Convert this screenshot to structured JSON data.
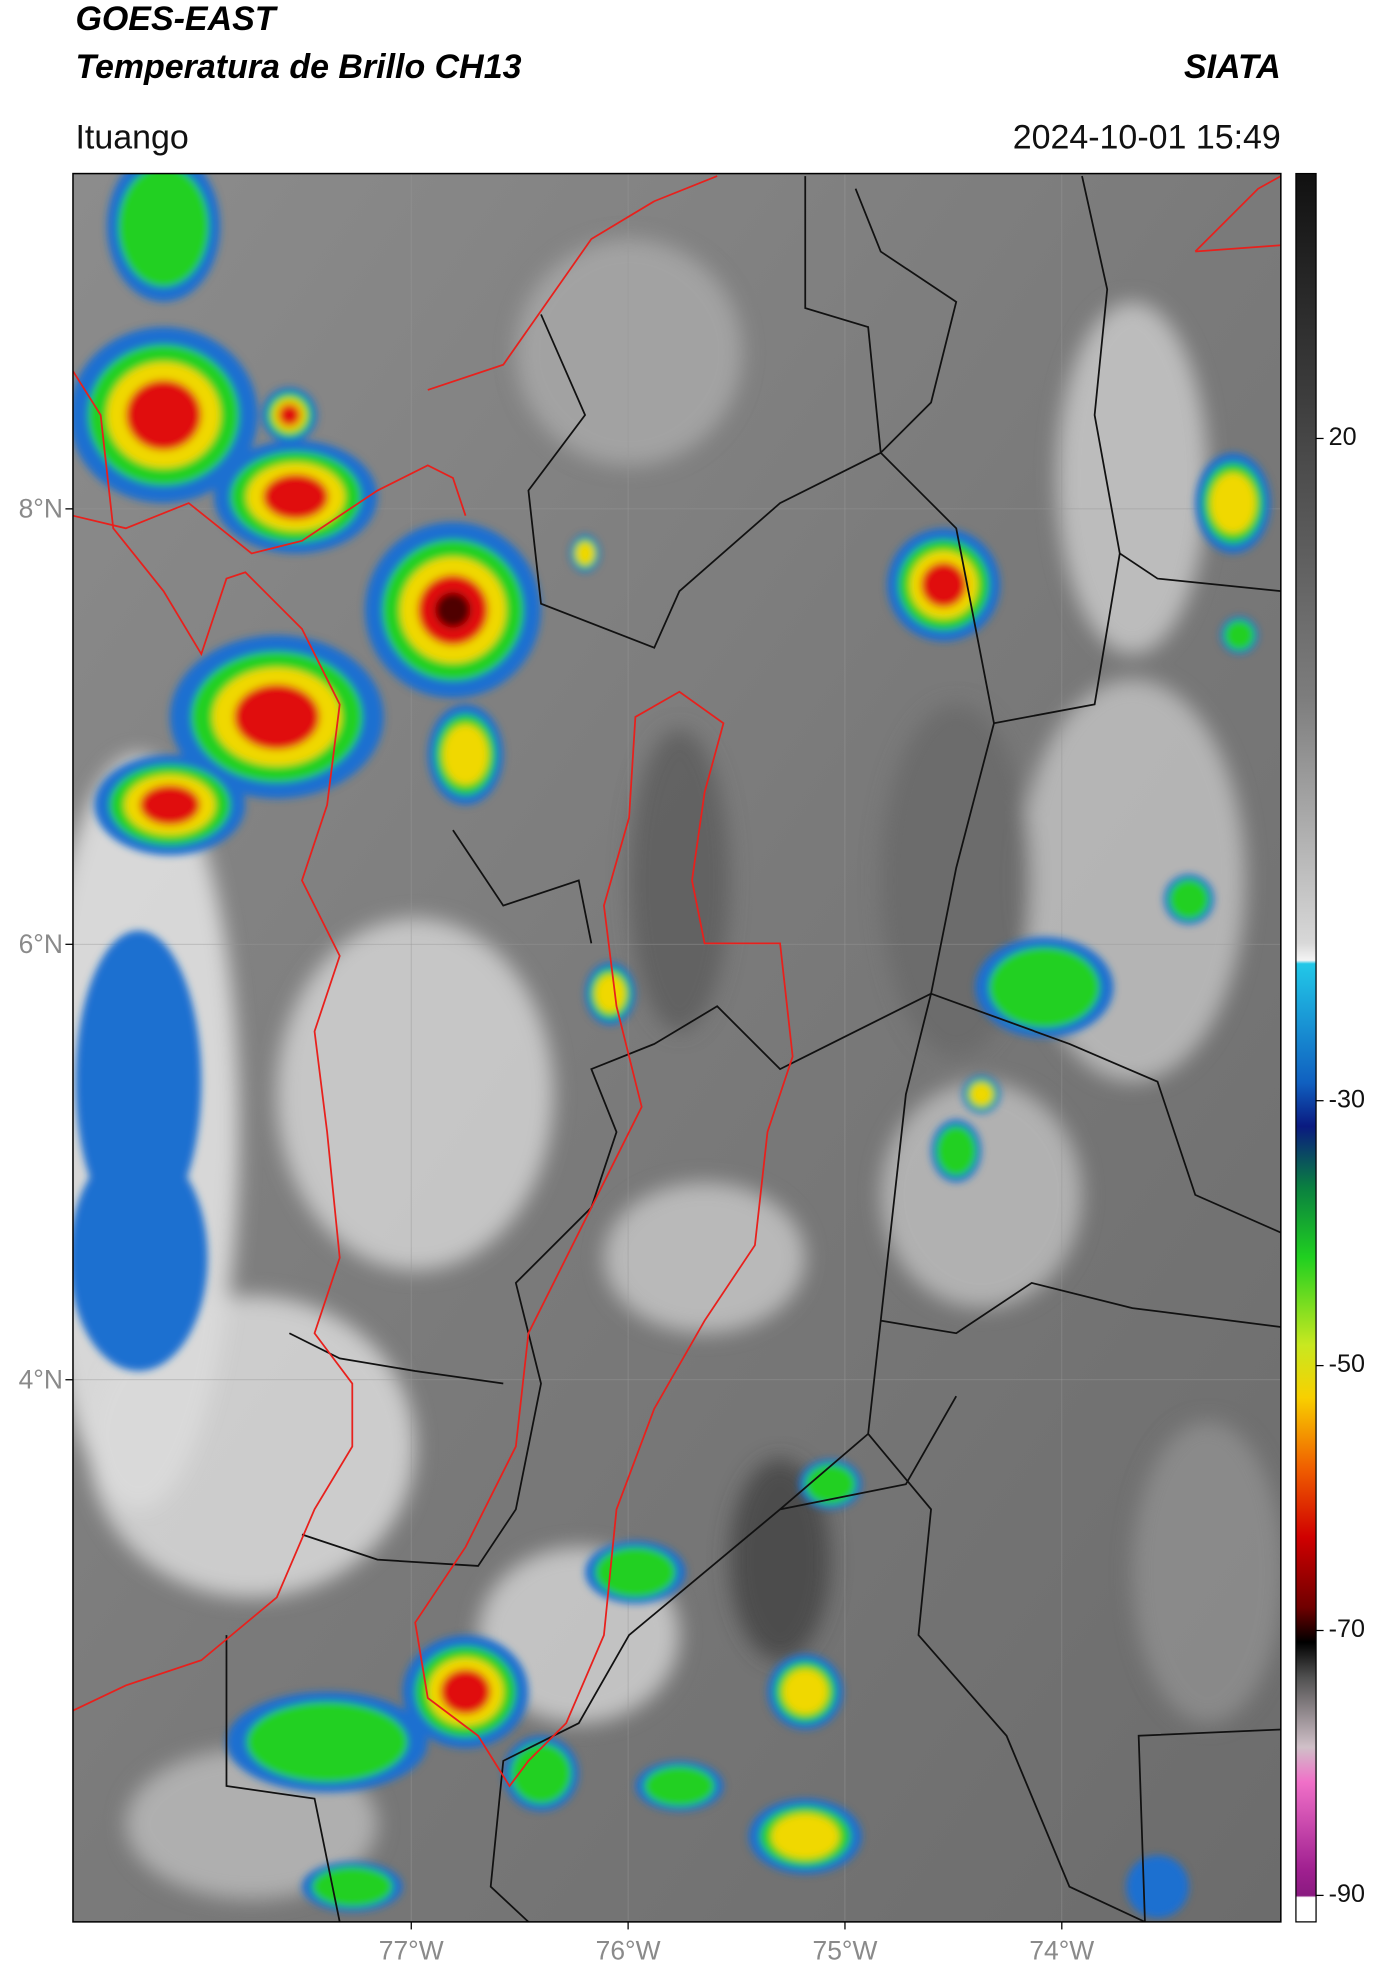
{
  "header": {
    "title": "GOES-EAST",
    "subtitle": "Temperatura de Brillo CH13",
    "organization": "SIATA",
    "location": "Ituango",
    "timestamp": "2024-10-01 15:49"
  },
  "map": {
    "xlim": [
      -78.56,
      -72.99
    ],
    "ylim": [
      1.51,
      9.54
    ],
    "xticks": [
      {
        "value": -77,
        "label": "77°W"
      },
      {
        "value": -76,
        "label": "76°W"
      },
      {
        "value": -75,
        "label": "75°W"
      },
      {
        "value": -74,
        "label": "74°W"
      }
    ],
    "yticks": [
      {
        "value": 8,
        "label": "8°N"
      },
      {
        "value": 6,
        "label": "6°N"
      },
      {
        "value": 4,
        "label": "4°N"
      }
    ]
  },
  "colorbar": {
    "lim": [
      -92,
      40
    ],
    "ticks": [
      20,
      -30,
      -50,
      -70,
      -90
    ]
  }
}
